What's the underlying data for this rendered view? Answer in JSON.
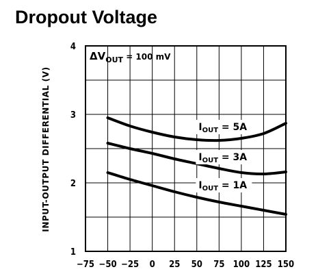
{
  "chart_data": {
    "type": "line",
    "title": "Dropout Voltage",
    "ylabel": "INPUT-OUTPUT DIFFERENTIAL (V)",
    "xlabel": "",
    "annotation": {
      "prefix": "ΔV",
      "sub": "OUT",
      "suffix": " = 100 mV"
    },
    "xlim": [
      -75,
      150
    ],
    "ylim": [
      1,
      4
    ],
    "x_ticks": [
      {
        "value": -75,
        "label": "−75"
      },
      {
        "value": -50,
        "label": "−50"
      },
      {
        "value": -25,
        "label": "−25"
      },
      {
        "value": 0,
        "label": "0"
      },
      {
        "value": 25,
        "label": "25"
      },
      {
        "value": 50,
        "label": "50"
      },
      {
        "value": 75,
        "label": "75"
      },
      {
        "value": 100,
        "label": "100"
      },
      {
        "value": 125,
        "label": "125"
      },
      {
        "value": 150,
        "label": "150"
      }
    ],
    "y_ticks": [
      {
        "value": 1,
        "label": "1"
      },
      {
        "value": 2,
        "label": "2"
      },
      {
        "value": 3,
        "label": "3"
      },
      {
        "value": 4,
        "label": "4"
      }
    ],
    "x_gridlines": [
      -50,
      -25,
      0,
      25,
      50,
      75,
      100,
      125
    ],
    "y_gridlines": [
      1.5,
      2,
      2.5,
      3,
      3.5
    ],
    "series": [
      {
        "name_prefix": "I",
        "name_sub": "OUT",
        "name_suffix": " = 5A",
        "label_at": [
          52,
          2.77
        ],
        "x": [
          -50,
          -25,
          0,
          25,
          50,
          75,
          100,
          125,
          150
        ],
        "y": [
          2.95,
          2.83,
          2.74,
          2.67,
          2.63,
          2.62,
          2.65,
          2.72,
          2.87
        ]
      },
      {
        "name_prefix": "I",
        "name_sub": "OUT",
        "name_suffix": " = 3A",
        "label_at": [
          52,
          2.33
        ],
        "x": [
          -50,
          -25,
          0,
          25,
          50,
          75,
          100,
          125,
          150
        ],
        "y": [
          2.58,
          2.5,
          2.43,
          2.35,
          2.28,
          2.21,
          2.15,
          2.13,
          2.16
        ]
      },
      {
        "name_prefix": "I",
        "name_sub": "OUT",
        "name_suffix": " = 1A",
        "label_at": [
          52,
          1.92
        ],
        "x": [
          -50,
          -25,
          0,
          25,
          50,
          75,
          100,
          125,
          150
        ],
        "y": [
          2.15,
          2.05,
          1.96,
          1.87,
          1.79,
          1.72,
          1.66,
          1.6,
          1.54
        ]
      }
    ]
  }
}
